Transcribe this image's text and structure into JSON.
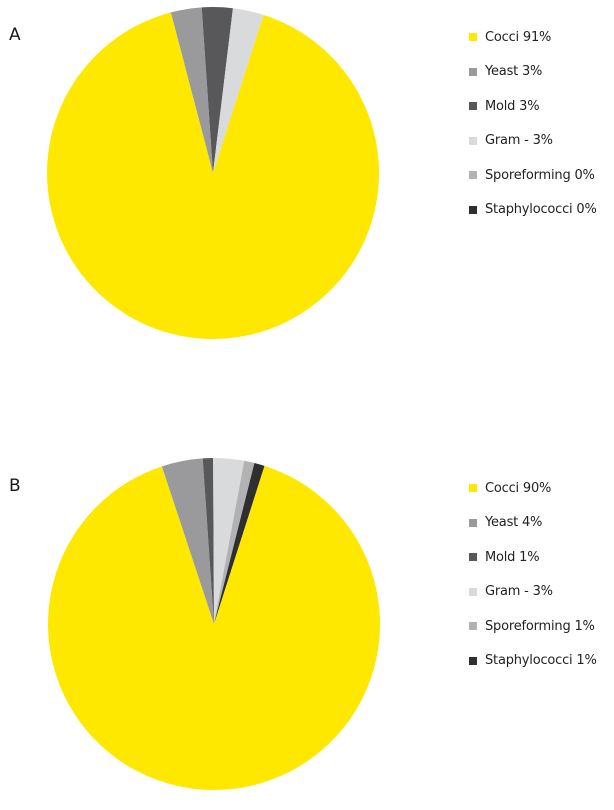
{
  "colors": {
    "Cocci": "#ffe800",
    "Yeast": "#9a9a9c",
    "Mold": "#58585a",
    "Gram -": "#d9dadb",
    "Sporeforming": "#b2b2b3",
    "Staphylococci": "#2f2f31"
  },
  "chart_data": [
    {
      "type": "pie",
      "panel_label": "A",
      "legend_position": "right",
      "slices": [
        {
          "label": "Cocci",
          "value": 91,
          "legend_text": "Cocci 91%"
        },
        {
          "label": "Yeast",
          "value": 3,
          "legend_text": "Yeast 3%"
        },
        {
          "label": "Mold",
          "value": 3,
          "legend_text": "Mold 3%"
        },
        {
          "label": "Gram -",
          "value": 3,
          "legend_text": "Gram - 3%"
        },
        {
          "label": "Sporeforming",
          "value": 0,
          "legend_text": "Sporeforming 0%"
        },
        {
          "label": "Staphylococci",
          "value": 0,
          "legend_text": "Staphylococci 0%"
        }
      ]
    },
    {
      "type": "pie",
      "panel_label": "B",
      "legend_position": "right",
      "slices": [
        {
          "label": "Cocci",
          "value": 90,
          "legend_text": "Cocci 90%"
        },
        {
          "label": "Yeast",
          "value": 4,
          "legend_text": "Yeast 4%"
        },
        {
          "label": "Mold",
          "value": 1,
          "legend_text": "Mold 1%"
        },
        {
          "label": "Gram -",
          "value": 3,
          "legend_text": "Gram - 3%"
        },
        {
          "label": "Sporeforming",
          "value": 1,
          "legend_text": "Sporeforming 1%"
        },
        {
          "label": "Staphylococci",
          "value": 1,
          "legend_text": "Staphylococci 1%"
        }
      ]
    }
  ]
}
